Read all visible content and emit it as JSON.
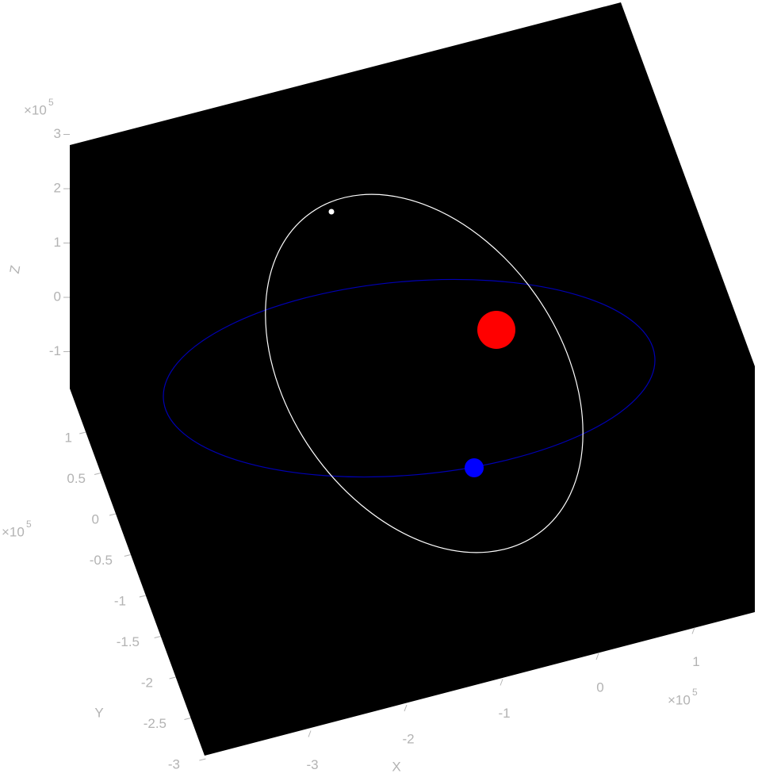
{
  "axes": {
    "x": {
      "label": "X",
      "multiplier": "×10",
      "exponent": 5,
      "ticks": [
        -3,
        -2,
        -1,
        0,
        1
      ]
    },
    "y": {
      "label": "Y",
      "multiplier": "×10",
      "exponent": 5,
      "ticks": [
        1,
        0.5,
        0,
        -0.5,
        -1,
        -1.5,
        -2,
        -2.5,
        -3
      ]
    },
    "z": {
      "label": "Z",
      "multiplier": "×10",
      "exponent": 5,
      "ticks": [
        3,
        2,
        1,
        0,
        -1
      ]
    }
  }
}
